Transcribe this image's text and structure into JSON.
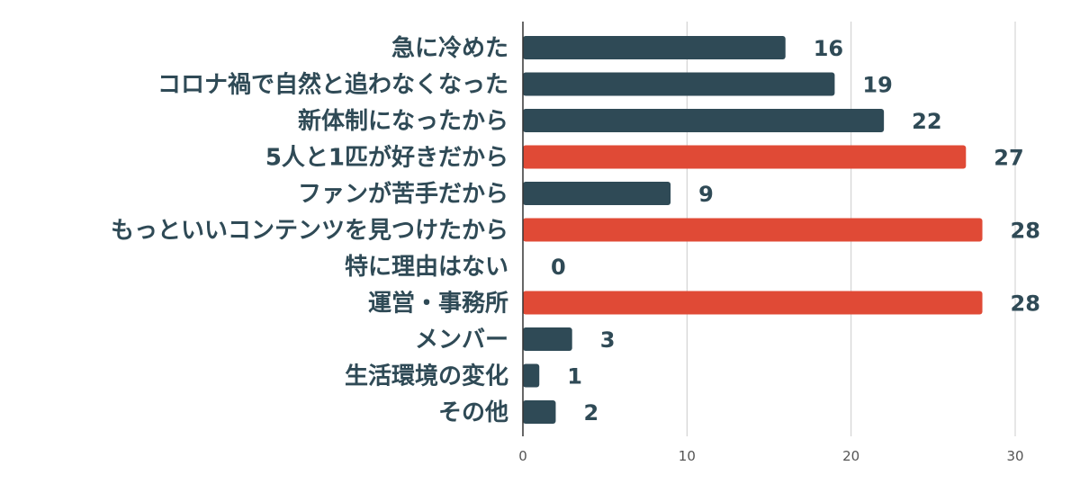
{
  "chart_data": {
    "type": "bar",
    "orientation": "horizontal",
    "categories": [
      "急に冷めた",
      "コロナ禍で自然と追わなくなった",
      "新体制になったから",
      "5人と1匹が好きだから",
      "ファンが苦手だから",
      "もっといいコンテンツを見つけたから",
      "特に理由はない",
      "運営・事務所",
      "メンバー",
      "生活環境の変化",
      "その他"
    ],
    "values": [
      16,
      19,
      22,
      27,
      9,
      28,
      0,
      28,
      3,
      1,
      2
    ],
    "value_labels": [
      "16",
      "19",
      "22",
      "27",
      "9",
      "28",
      "0",
      "28",
      "3",
      "1",
      "2"
    ],
    "highlighted": [
      false,
      false,
      false,
      true,
      false,
      true,
      false,
      true,
      false,
      false,
      false
    ],
    "xlim": [
      0,
      30
    ],
    "x_ticks": [
      0,
      10,
      20,
      30
    ],
    "x_tick_labels": [
      "0",
      "10",
      "20",
      "30"
    ],
    "grid": true,
    "legend": "none",
    "colors": {
      "default": "#2f4a56",
      "highlight": "#e04a36",
      "grid": "#cccccc",
      "axis": "#333333"
    }
  }
}
